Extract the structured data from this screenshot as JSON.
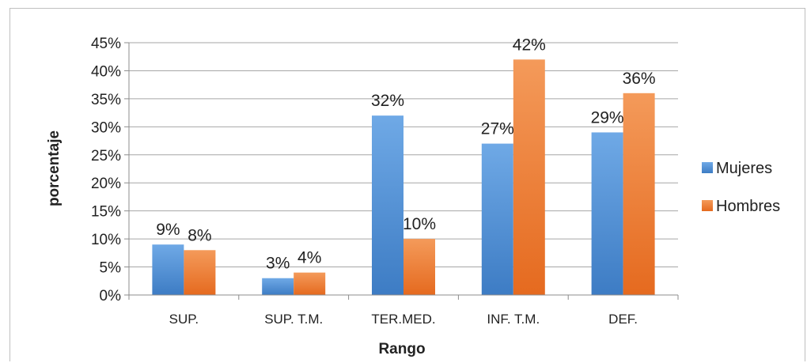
{
  "chart_data": {
    "type": "bar",
    "title": "",
    "xlabel": "Rango",
    "ylabel": "porcentaje",
    "categories": [
      "SUP.",
      "SUP. T.M.",
      "TER.MED.",
      "INF. T.M.",
      "DEF."
    ],
    "series": [
      {
        "name": "Mujeres",
        "values": [
          9,
          3,
          32,
          27,
          29
        ],
        "labels": [
          "9%",
          "3%",
          "32%",
          "27%",
          "29%"
        ],
        "color": "#4f8fd6"
      },
      {
        "name": "Hombres",
        "values": [
          8,
          4,
          10,
          42,
          36
        ],
        "labels": [
          "8%",
          "4%",
          "10%",
          "42%",
          "36%"
        ],
        "color": "#ee7a30"
      }
    ],
    "ylim": [
      0,
      45
    ],
    "yticks": [
      0,
      5,
      10,
      15,
      20,
      25,
      30,
      35,
      40,
      45
    ],
    "ytick_labels": [
      "0%",
      "5%",
      "10%",
      "15%",
      "20%",
      "25%",
      "30%",
      "35%",
      "40%",
      "45%"
    ],
    "grid": true,
    "legend_position": "right"
  }
}
